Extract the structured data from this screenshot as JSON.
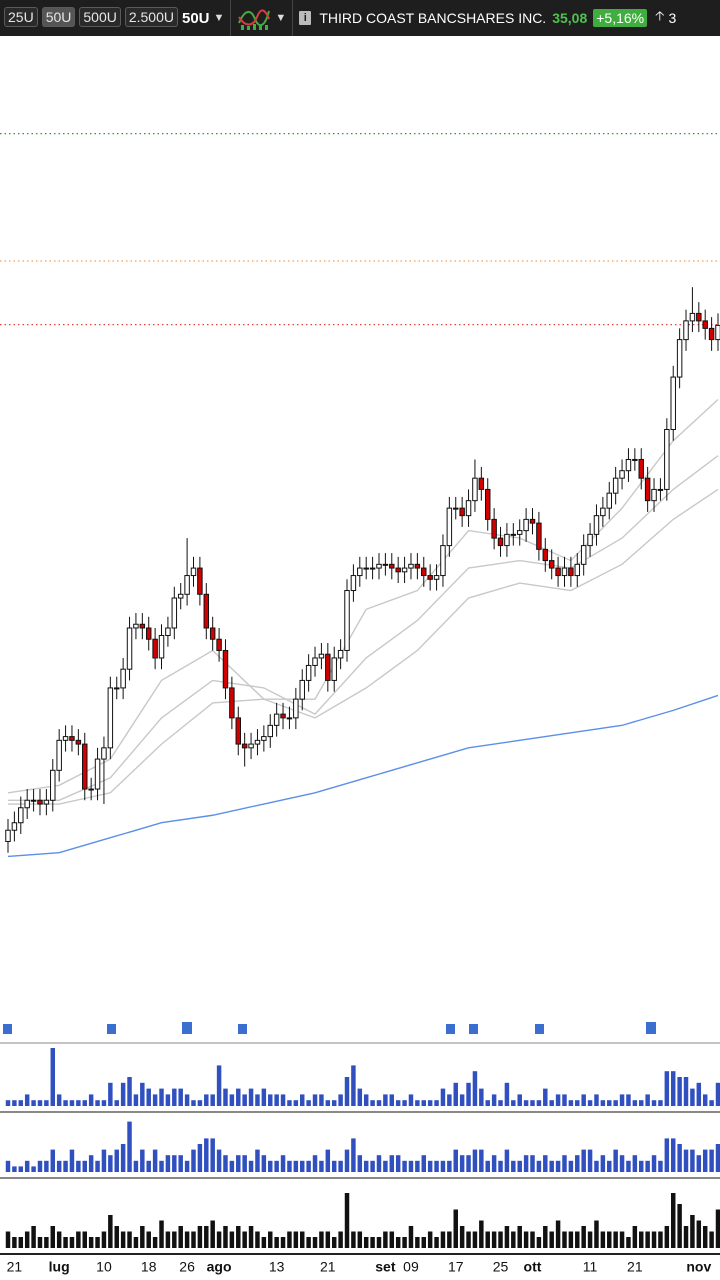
{
  "toolbar": {
    "ranges": [
      "25U",
      "50U",
      "500U",
      "2.500U"
    ],
    "active_range": 1,
    "period": "50U",
    "name": "THIRD COAST BANCSHARES INC.",
    "price": "35,08",
    "change": "+5,16%",
    "extra": "3"
  },
  "chart_data": {
    "type": "candlestick",
    "up_color": "#ffffff",
    "down_color": "#d40000",
    "ylim": [
      16.8,
      42.7
    ],
    "categories": [
      null,
      "21",
      null,
      null,
      null,
      null,
      null,
      null,
      "lug",
      null,
      null,
      null,
      null,
      null,
      null,
      "10",
      null,
      null,
      null,
      null,
      null,
      null,
      "18",
      null,
      null,
      null,
      null,
      null,
      "26",
      null,
      null,
      null,
      null,
      "ago",
      null,
      null,
      null,
      null,
      null,
      null,
      null,
      null,
      "13",
      null,
      null,
      null,
      null,
      null,
      null,
      null,
      "21",
      null,
      null,
      null,
      null,
      null,
      null,
      null,
      null,
      "set",
      null,
      null,
      null,
      "09",
      null,
      null,
      null,
      null,
      null,
      null,
      "17",
      null,
      null,
      null,
      null,
      null,
      null,
      "25",
      null,
      null,
      null,
      null,
      "ott",
      null,
      null,
      null,
      null,
      null,
      null,
      null,
      null,
      "11",
      null,
      null,
      null,
      null,
      null,
      null,
      "21",
      null,
      null,
      null,
      null,
      null,
      null,
      null,
      null,
      null,
      "nov",
      null,
      null,
      null
    ],
    "ohlc": [
      [
        21.3,
        21.9,
        21.0,
        21.6
      ],
      [
        21.6,
        22.1,
        21.3,
        21.8
      ],
      [
        21.8,
        22.5,
        21.5,
        22.2
      ],
      [
        22.2,
        22.7,
        21.9,
        22.4
      ],
      [
        22.4,
        22.7,
        22.1,
        22.4
      ],
      [
        22.4,
        22.7,
        22.0,
        22.3
      ],
      [
        22.3,
        22.7,
        22.0,
        22.4
      ],
      [
        22.4,
        23.5,
        22.1,
        23.2
      ],
      [
        23.2,
        24.3,
        22.9,
        24.0
      ],
      [
        24.0,
        24.4,
        23.7,
        24.1
      ],
      [
        24.1,
        24.4,
        23.7,
        24.0
      ],
      [
        24.0,
        24.3,
        23.6,
        23.9
      ],
      [
        23.9,
        24.2,
        22.4,
        22.7
      ],
      [
        22.7,
        23.0,
        22.4,
        22.7
      ],
      [
        22.7,
        23.8,
        22.4,
        23.5
      ],
      [
        23.5,
        24.1,
        22.3,
        23.8
      ],
      [
        23.8,
        25.7,
        23.5,
        25.4
      ],
      [
        25.4,
        25.7,
        25.1,
        25.4
      ],
      [
        25.4,
        26.2,
        25.1,
        25.9
      ],
      [
        25.9,
        27.3,
        25.6,
        27.0
      ],
      [
        27.0,
        27.4,
        26.7,
        27.1
      ],
      [
        27.1,
        27.4,
        26.7,
        27.0
      ],
      [
        27.0,
        27.3,
        26.4,
        26.7
      ],
      [
        26.7,
        27.0,
        25.9,
        26.2
      ],
      [
        26.2,
        27.1,
        25.9,
        26.8
      ],
      [
        26.8,
        27.3,
        26.5,
        27.0
      ],
      [
        27.0,
        28.1,
        26.7,
        27.8
      ],
      [
        27.8,
        28.2,
        27.5,
        27.9
      ],
      [
        27.9,
        29.4,
        27.6,
        28.4
      ],
      [
        28.4,
        28.9,
        28.1,
        28.6
      ],
      [
        28.6,
        28.9,
        27.6,
        27.9
      ],
      [
        27.9,
        28.2,
        26.7,
        27.0
      ],
      [
        27.0,
        27.3,
        26.4,
        26.7
      ],
      [
        26.7,
        27.0,
        26.1,
        26.4
      ],
      [
        26.4,
        26.7,
        25.1,
        25.4
      ],
      [
        25.4,
        25.7,
        24.3,
        24.6
      ],
      [
        24.6,
        24.9,
        23.6,
        23.9
      ],
      [
        23.9,
        24.2,
        23.3,
        23.8
      ],
      [
        23.8,
        24.2,
        23.5,
        23.9
      ],
      [
        23.9,
        24.3,
        23.6,
        24.0
      ],
      [
        24.0,
        24.4,
        23.7,
        24.1
      ],
      [
        24.1,
        24.7,
        23.8,
        24.4
      ],
      [
        24.4,
        25.0,
        24.1,
        24.7
      ],
      [
        24.7,
        25.0,
        24.3,
        24.6
      ],
      [
        24.6,
        24.9,
        24.3,
        24.6
      ],
      [
        24.6,
        25.4,
        24.3,
        25.1
      ],
      [
        25.1,
        25.9,
        24.8,
        25.6
      ],
      [
        25.6,
        26.3,
        25.3,
        26.0
      ],
      [
        26.0,
        26.5,
        25.7,
        26.2
      ],
      [
        26.2,
        26.6,
        25.9,
        26.3
      ],
      [
        26.3,
        26.6,
        25.3,
        25.6
      ],
      [
        25.6,
        26.5,
        25.3,
        26.2
      ],
      [
        26.2,
        26.7,
        25.9,
        26.4
      ],
      [
        26.4,
        28.3,
        26.1,
        28.0
      ],
      [
        28.0,
        28.7,
        27.7,
        28.4
      ],
      [
        28.4,
        28.9,
        28.1,
        28.6
      ],
      [
        28.6,
        28.9,
        28.3,
        28.6
      ],
      [
        28.6,
        28.9,
        28.3,
        28.6
      ],
      [
        28.6,
        29.0,
        28.3,
        28.7
      ],
      [
        28.7,
        29.0,
        28.4,
        28.7
      ],
      [
        28.7,
        29.0,
        28.3,
        28.6
      ],
      [
        28.6,
        28.9,
        28.2,
        28.5
      ],
      [
        28.5,
        28.9,
        28.2,
        28.6
      ],
      [
        28.6,
        29.0,
        28.3,
        28.7
      ],
      [
        28.7,
        29.0,
        28.3,
        28.6
      ],
      [
        28.6,
        28.9,
        28.1,
        28.4
      ],
      [
        28.4,
        28.7,
        28.0,
        28.3
      ],
      [
        28.3,
        28.7,
        28.0,
        28.4
      ],
      [
        28.4,
        29.5,
        28.1,
        29.2
      ],
      [
        29.2,
        30.5,
        28.9,
        30.2
      ],
      [
        30.2,
        30.5,
        29.9,
        30.2
      ],
      [
        30.2,
        30.5,
        29.7,
        30.0
      ],
      [
        30.0,
        30.7,
        29.7,
        30.4
      ],
      [
        30.4,
        31.5,
        30.1,
        31.0
      ],
      [
        31.0,
        31.3,
        30.4,
        30.7
      ],
      [
        30.7,
        31.0,
        29.6,
        29.9
      ],
      [
        29.9,
        30.2,
        29.1,
        29.4
      ],
      [
        29.4,
        29.7,
        28.9,
        29.2
      ],
      [
        29.2,
        29.8,
        28.9,
        29.5
      ],
      [
        29.5,
        29.8,
        29.2,
        29.5
      ],
      [
        29.5,
        29.9,
        29.2,
        29.6
      ],
      [
        29.6,
        30.2,
        29.3,
        29.9
      ],
      [
        29.9,
        30.2,
        29.5,
        29.8
      ],
      [
        29.8,
        30.1,
        28.8,
        29.1
      ],
      [
        29.1,
        29.4,
        28.5,
        28.8
      ],
      [
        28.8,
        29.1,
        28.3,
        28.6
      ],
      [
        28.6,
        28.9,
        28.1,
        28.4
      ],
      [
        28.4,
        28.9,
        28.1,
        28.6
      ],
      [
        28.6,
        28.9,
        28.1,
        28.4
      ],
      [
        28.4,
        29.0,
        28.1,
        28.7
      ],
      [
        28.7,
        29.5,
        28.4,
        29.2
      ],
      [
        29.2,
        29.8,
        28.9,
        29.5
      ],
      [
        29.5,
        30.3,
        29.2,
        30.0
      ],
      [
        30.0,
        30.5,
        29.7,
        30.2
      ],
      [
        30.2,
        30.9,
        29.9,
        30.6
      ],
      [
        30.6,
        31.3,
        30.3,
        31.0
      ],
      [
        31.0,
        31.5,
        30.7,
        31.2
      ],
      [
        31.2,
        31.8,
        30.9,
        31.5
      ],
      [
        31.5,
        31.8,
        31.2,
        31.5
      ],
      [
        31.5,
        31.8,
        30.7,
        31.0
      ],
      [
        31.0,
        31.3,
        30.1,
        30.4
      ],
      [
        30.4,
        31.0,
        30.1,
        30.7
      ],
      [
        30.7,
        31.0,
        30.4,
        30.7
      ],
      [
        30.7,
        32.6,
        30.4,
        32.3
      ],
      [
        32.3,
        34.0,
        32.0,
        33.7
      ],
      [
        33.7,
        35.0,
        33.4,
        34.7
      ],
      [
        34.7,
        35.5,
        34.4,
        35.2
      ],
      [
        35.2,
        36.1,
        34.9,
        35.4
      ],
      [
        35.4,
        35.7,
        34.9,
        35.2
      ],
      [
        35.2,
        35.5,
        34.7,
        35.0
      ],
      [
        35.0,
        35.3,
        34.4,
        34.7
      ],
      [
        34.7,
        35.4,
        34.4,
        35.08
      ]
    ],
    "overlays": [
      {
        "color": "#5b8fe8",
        "x": [
          0,
          8,
          16,
          24,
          32,
          40,
          48,
          56,
          64,
          72,
          80,
          88,
          96,
          104,
          111
        ],
        "values": [
          20.9,
          21.0,
          21.4,
          21.8,
          22.0,
          22.3,
          22.6,
          23.0,
          23.4,
          23.8,
          24.0,
          24.2,
          24.4,
          24.8,
          25.2
        ]
      },
      {
        "color": "#c8c8c8",
        "x": [
          0,
          8,
          16,
          24,
          32,
          40,
          48,
          56,
          64,
          72,
          80,
          88,
          96,
          104,
          111
        ],
        "values": [
          22.6,
          22.8,
          23.5,
          25.6,
          26.4,
          25.1,
          25.1,
          27.5,
          28.0,
          29.6,
          29.4,
          28.8,
          30.2,
          32.0,
          33.1
        ]
      },
      {
        "color": "#c8c8c8",
        "x": [
          0,
          8,
          16,
          24,
          32,
          40,
          48,
          56,
          64,
          72,
          80,
          88,
          96,
          104,
          111
        ],
        "values": [
          22.4,
          22.4,
          23.0,
          24.6,
          25.6,
          25.4,
          24.7,
          26.2,
          27.2,
          28.6,
          28.8,
          28.6,
          29.4,
          30.7,
          31.6
        ]
      },
      {
        "color": "#c8c8c8",
        "x": [
          0,
          8,
          16,
          24,
          32,
          40,
          48,
          56,
          64,
          72,
          80,
          88,
          96,
          104,
          111
        ],
        "values": [
          22.3,
          22.3,
          22.6,
          23.9,
          25.0,
          25.1,
          24.6,
          25.4,
          26.4,
          27.8,
          28.2,
          28.0,
          28.7,
          29.9,
          30.7
        ]
      }
    ],
    "levels": [
      {
        "value": 40.2,
        "color": "#2e9e2e"
      },
      {
        "value": 36.8,
        "color": "#f0a050"
      },
      {
        "value": 35.1,
        "color": "#e04040"
      }
    ],
    "panels": [
      {
        "color": "#3050c0",
        "ylim": [
          0,
          10
        ],
        "values": [
          1,
          1,
          1,
          2,
          1,
          1,
          1,
          10,
          2,
          1,
          1,
          1,
          1,
          2,
          1,
          1,
          4,
          1,
          4,
          5,
          2,
          4,
          3,
          2,
          3,
          2,
          3,
          3,
          2,
          1,
          1,
          2,
          2,
          7,
          3,
          2,
          3,
          2,
          3,
          2,
          3,
          2,
          2,
          2,
          1,
          1,
          2,
          1,
          2,
          2,
          1,
          1,
          2,
          5,
          7,
          3,
          2,
          1,
          1,
          2,
          2,
          1,
          1,
          2,
          1,
          1,
          1,
          1,
          3,
          2,
          4,
          2,
          4,
          6,
          3,
          1,
          2,
          1,
          4,
          1,
          2,
          1,
          1,
          1,
          3,
          1,
          2,
          2,
          1,
          1,
          2,
          1,
          2,
          1,
          1,
          1,
          2,
          2,
          1,
          1,
          2,
          1,
          1,
          6,
          6,
          5,
          5,
          3,
          4,
          2,
          1,
          4
        ]
      },
      {
        "color": "#3050c0",
        "ylim": [
          0,
          10
        ],
        "values": [
          2,
          1,
          1,
          2,
          1,
          2,
          2,
          4,
          2,
          2,
          4,
          2,
          2,
          3,
          2,
          4,
          3,
          4,
          5,
          9,
          2,
          4,
          2,
          4,
          2,
          3,
          3,
          3,
          2,
          4,
          5,
          6,
          6,
          4,
          3,
          2,
          3,
          3,
          2,
          4,
          3,
          2,
          2,
          3,
          2,
          2,
          2,
          2,
          3,
          2,
          4,
          2,
          2,
          4,
          6,
          3,
          2,
          2,
          3,
          2,
          3,
          3,
          2,
          2,
          2,
          3,
          2,
          2,
          2,
          2,
          4,
          3,
          3,
          4,
          4,
          2,
          3,
          2,
          4,
          2,
          2,
          3,
          3,
          2,
          3,
          2,
          2,
          3,
          2,
          3,
          4,
          4,
          2,
          3,
          2,
          4,
          3,
          2,
          3,
          2,
          2,
          3,
          2,
          6,
          6,
          5,
          4,
          4,
          3,
          4,
          4,
          5
        ]
      },
      {
        "color": "#111111",
        "ylim": [
          0,
          12
        ],
        "values": [
          3,
          2,
          2,
          3,
          4,
          2,
          2,
          4,
          3,
          2,
          2,
          3,
          3,
          2,
          2,
          3,
          6,
          4,
          3,
          3,
          2,
          4,
          3,
          2,
          5,
          3,
          3,
          4,
          3,
          3,
          4,
          4,
          5,
          3,
          4,
          3,
          4,
          3,
          4,
          3,
          2,
          3,
          2,
          2,
          3,
          3,
          3,
          2,
          2,
          3,
          3,
          2,
          3,
          10,
          3,
          3,
          2,
          2,
          2,
          3,
          3,
          2,
          2,
          4,
          2,
          2,
          3,
          2,
          3,
          3,
          7,
          4,
          3,
          3,
          5,
          3,
          3,
          3,
          4,
          3,
          4,
          3,
          3,
          2,
          4,
          3,
          5,
          3,
          3,
          3,
          4,
          3,
          5,
          3,
          3,
          3,
          3,
          2,
          4,
          3,
          3,
          3,
          3,
          4,
          10,
          8,
          4,
          6,
          5,
          4,
          3,
          7
        ]
      }
    ]
  }
}
